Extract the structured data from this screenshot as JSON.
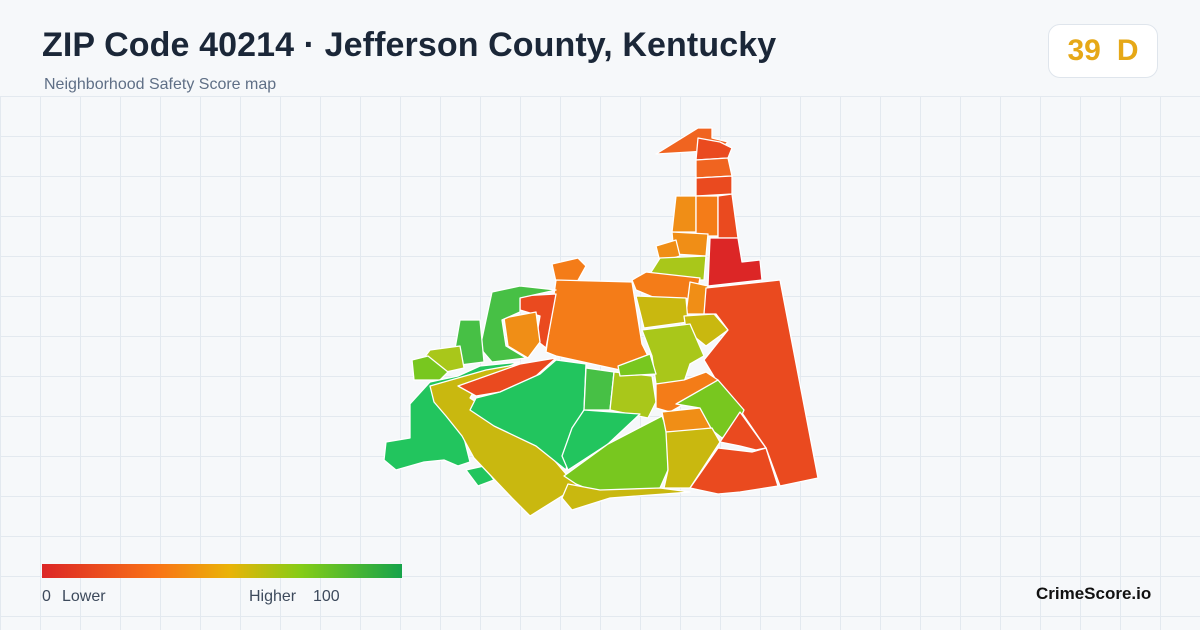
{
  "header": {
    "title": "ZIP Code 40214 · Jefferson County, Kentucky",
    "subtitle": "Neighborhood Safety Score map"
  },
  "score": {
    "value": "39",
    "grade": "D",
    "color": "#e6a817"
  },
  "legend": {
    "min_value": "0",
    "min_label": "Lower",
    "max_label": "Higher",
    "max_value": "100",
    "colors": [
      "#dc2626",
      "#f97316",
      "#eab308",
      "#84cc16",
      "#16a34a"
    ]
  },
  "brand": "CrimeScore.io",
  "map": {
    "fill_colors": {
      "red": "#dc2626",
      "red_orange": "#ea4a1f",
      "orange_red": "#f06420",
      "orange": "#f47c18",
      "amber": "#f08e16",
      "olive": "#c9b80f",
      "yellow_green": "#a9c71a",
      "lime": "#78c71f",
      "green": "#47c045",
      "bright_green": "#22c55e"
    }
  }
}
